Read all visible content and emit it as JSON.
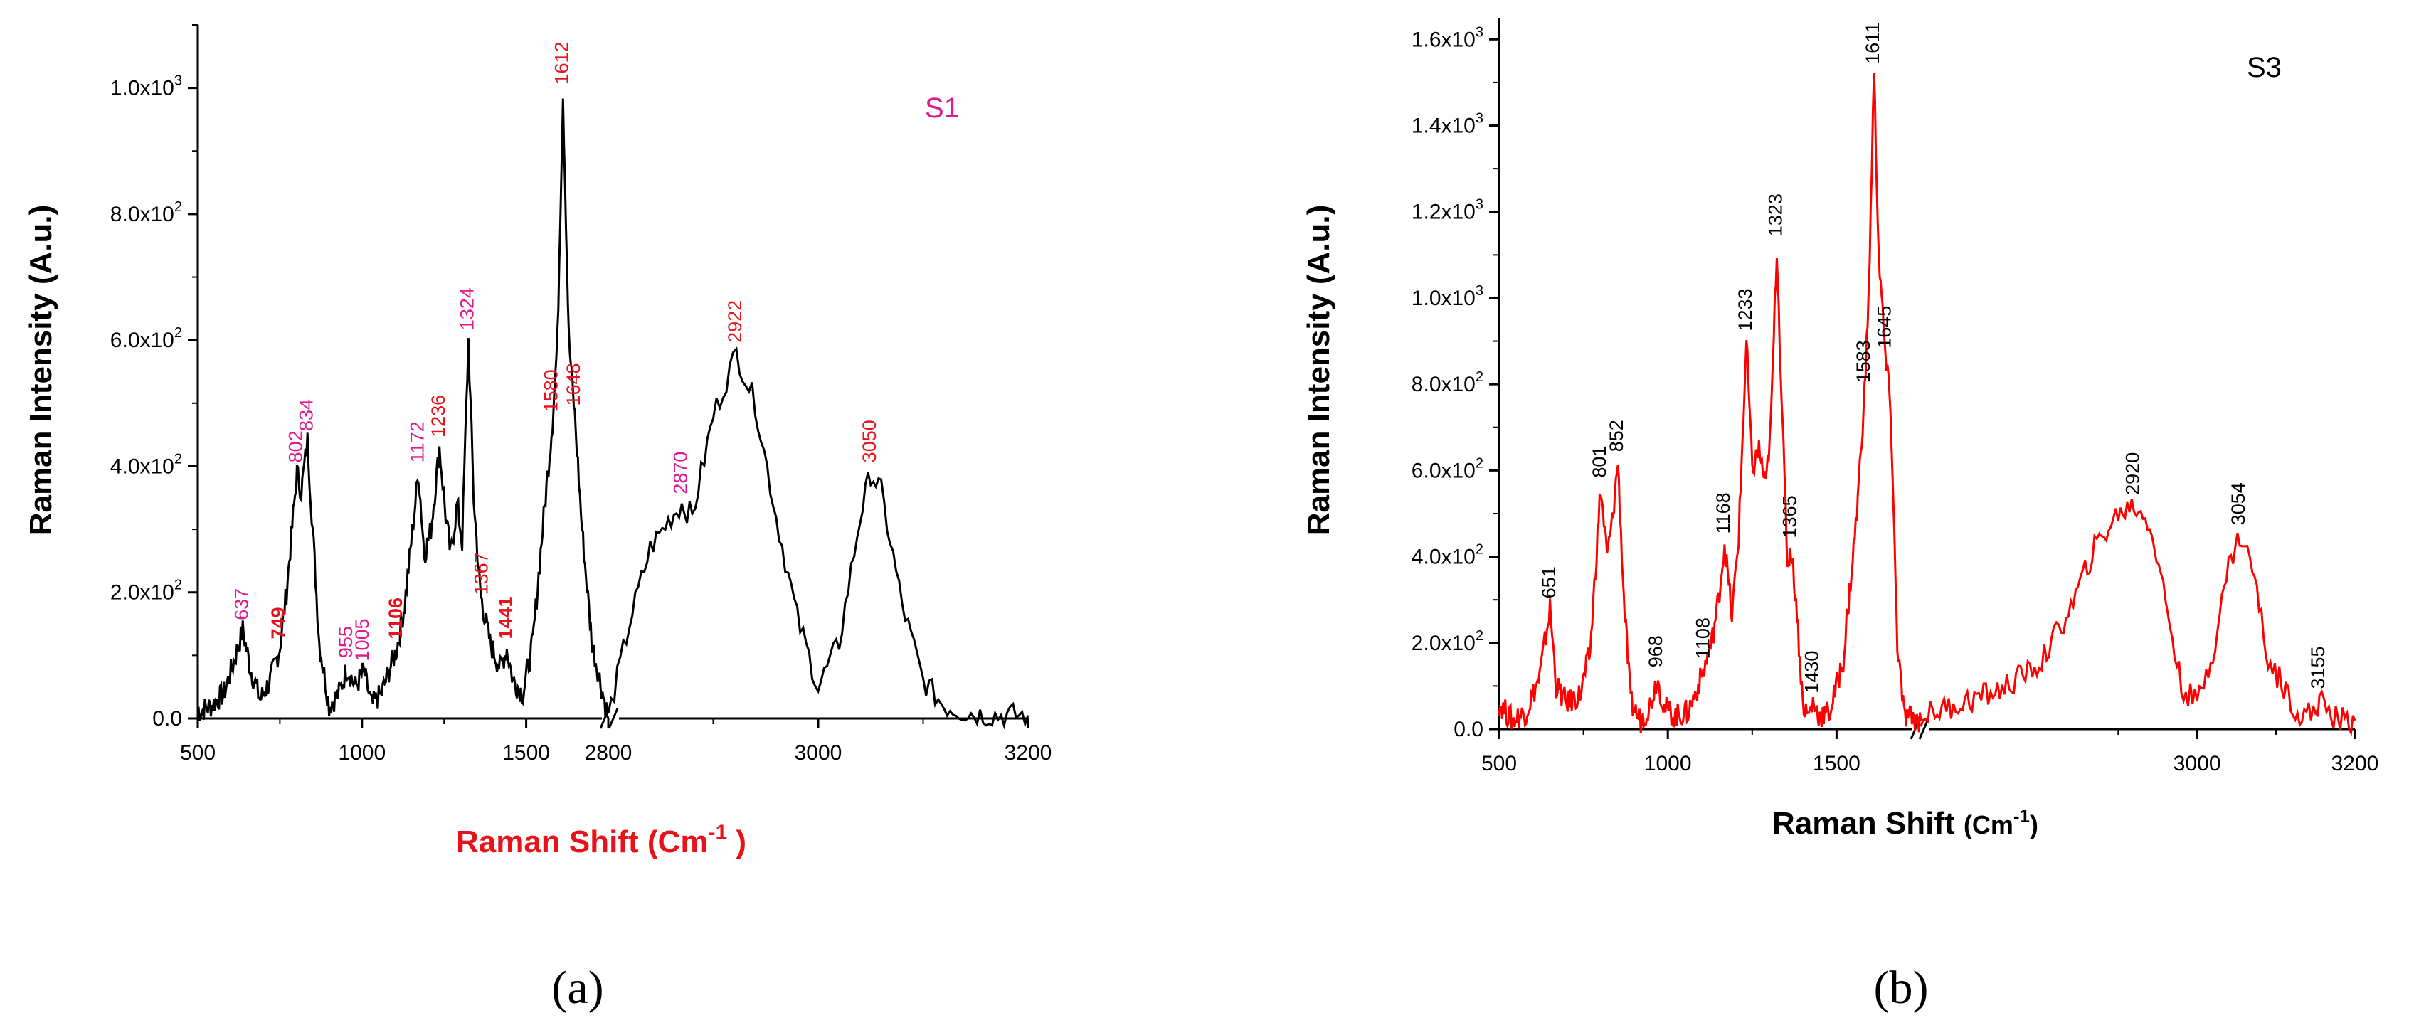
{
  "chart_data": [
    {
      "type": "line",
      "panel_caption": "(a)",
      "sample_label": "S1",
      "ylabel": "Raman Intensity (A.u.)",
      "xlabel": "Raman Shift (Cm",
      "xlabel_sup": "-1",
      "xlabel_tail": " )",
      "x_breaks": [
        [
          500,
          1750
        ],
        [
          2800,
          3200
        ]
      ],
      "ylim": [
        0,
        1100
      ],
      "x_tick_labels": [
        "500",
        "1000",
        "1500",
        "2800",
        "3000",
        "3200"
      ],
      "y_tick_labels": [
        {
          "mant": "0.0",
          "exp": ""
        },
        {
          "mant": "2.0x10",
          "exp": "2"
        },
        {
          "mant": "4.0x10",
          "exp": "2"
        },
        {
          "mant": "6.0x10",
          "exp": "2"
        },
        {
          "mant": "8.0x10",
          "exp": "2"
        },
        {
          "mant": "1.0x10",
          "exp": "3"
        }
      ],
      "y_tick_values": [
        0,
        200,
        400,
        600,
        800,
        1000
      ],
      "line_color": "#000000",
      "label_colors": {
        "magenta": "#e0198c",
        "red": "#e8131a"
      },
      "peaks": [
        {
          "x": 637,
          "y": 140,
          "label": "637",
          "color": "magenta"
        },
        {
          "x": 749,
          "y": 110,
          "label": "749",
          "color": "red",
          "bold": true
        },
        {
          "x": 802,
          "y": 390,
          "label": "802",
          "color": "magenta"
        },
        {
          "x": 834,
          "y": 440,
          "label": "834",
          "color": "magenta"
        },
        {
          "x": 955,
          "y": 80,
          "label": "955",
          "color": "magenta"
        },
        {
          "x": 1005,
          "y": 75,
          "label": "1005",
          "color": "magenta"
        },
        {
          "x": 1106,
          "y": 110,
          "label": "1106",
          "color": "red",
          "bold": true
        },
        {
          "x": 1172,
          "y": 390,
          "label": "1172",
          "color": "magenta"
        },
        {
          "x": 1236,
          "y": 430,
          "label": "1236",
          "color": "red"
        },
        {
          "x": 1324,
          "y": 600,
          "label": "1324",
          "color": "magenta"
        },
        {
          "x": 1367,
          "y": 180,
          "label": "1367",
          "color": "red"
        },
        {
          "x": 1441,
          "y": 110,
          "label": "1441",
          "color": "red",
          "bold": true
        },
        {
          "x": 1580,
          "y": 470,
          "label": "1580",
          "color": "red"
        },
        {
          "x": 1612,
          "y": 990,
          "label": "1612",
          "color": "red"
        },
        {
          "x": 1648,
          "y": 480,
          "label": "1648",
          "color": "red"
        },
        {
          "x": 2870,
          "y": 340,
          "label": "2870",
          "color": "magenta"
        },
        {
          "x": 2922,
          "y": 580,
          "label": "2922",
          "color": "red"
        },
        {
          "x": 3050,
          "y": 390,
          "label": "3050",
          "color": "red"
        }
      ],
      "series": [
        {
          "x": [
            500,
            540,
            580,
            610,
            637,
            660,
            690,
            720,
            749,
            770,
            802,
            815,
            834,
            850,
            870,
            900,
            930,
            955,
            980,
            1005,
            1030,
            1060,
            1085,
            1106,
            1130,
            1150,
            1172,
            1190,
            1210,
            1236,
            1255,
            1270,
            1290,
            1305,
            1324,
            1340,
            1360,
            1367,
            1390,
            1420,
            1441,
            1460,
            1490,
            1520,
            1550,
            1580,
            1595,
            1612,
            1630,
            1648,
            1670,
            1700,
            1750
          ],
          "y": [
            10,
            20,
            40,
            90,
            140,
            80,
            30,
            60,
            110,
            200,
            390,
            360,
            440,
            300,
            120,
            20,
            40,
            80,
            50,
            75,
            20,
            40,
            80,
            110,
            180,
            280,
            390,
            260,
            300,
            430,
            320,
            260,
            340,
            280,
            600,
            350,
            200,
            180,
            120,
            80,
            110,
            60,
            40,
            120,
            300,
            470,
            600,
            990,
            600,
            480,
            300,
            120,
            0
          ]
        },
        {
          "x": [
            2800,
            2820,
            2840,
            2860,
            2870,
            2880,
            2900,
            2922,
            2940,
            2960,
            2980,
            3000,
            3020,
            3040,
            3050,
            3060,
            3080,
            3100,
            3120,
            3140,
            3160,
            3180,
            3200
          ],
          "y": [
            0,
            150,
            270,
            320,
            340,
            320,
            480,
            580,
            500,
            320,
            160,
            50,
            120,
            320,
            390,
            360,
            180,
            60,
            20,
            10,
            5,
            5,
            5
          ]
        }
      ]
    },
    {
      "type": "line",
      "panel_caption": "(b)",
      "sample_label": "S3",
      "ylabel": "Raman Intensity (A.u.)",
      "xlabel": "Raman Shift ",
      "xlabel_unit": "(Cm",
      "xlabel_sup": "-1",
      "xlabel_tail": ")",
      "x_breaks": [
        [
          500,
          1750
        ],
        [
          2650,
          3200
        ]
      ],
      "ylim": [
        0,
        1650
      ],
      "x_tick_labels": [
        "500",
        "1000",
        "1500",
        "3000",
        "3200"
      ],
      "y_tick_labels": [
        {
          "mant": "0.0",
          "exp": ""
        },
        {
          "mant": "2.0x10",
          "exp": "2"
        },
        {
          "mant": "4.0x10",
          "exp": "2"
        },
        {
          "mant": "6.0x10",
          "exp": "2"
        },
        {
          "mant": "8.0x10",
          "exp": "2"
        },
        {
          "mant": "1.0x10",
          "exp": "3"
        },
        {
          "mant": "1.2x10",
          "exp": "3"
        },
        {
          "mant": "1.4x10",
          "exp": "3"
        },
        {
          "mant": "1.6x10",
          "exp": "3"
        }
      ],
      "y_tick_values": [
        0,
        200,
        400,
        600,
        800,
        1000,
        1200,
        1400,
        1600
      ],
      "line_color": "#ff0000",
      "label_colors": {
        "black": "#000000"
      },
      "peaks": [
        {
          "x": 651,
          "y": 280,
          "label": "651",
          "color": "black"
        },
        {
          "x": 801,
          "y": 560,
          "label": "801",
          "color": "black"
        },
        {
          "x": 852,
          "y": 620,
          "label": "852",
          "color": "black"
        },
        {
          "x": 968,
          "y": 120,
          "label": "968",
          "color": "black"
        },
        {
          "x": 1108,
          "y": 140,
          "label": "1108",
          "color": "black"
        },
        {
          "x": 1168,
          "y": 430,
          "label": "1168",
          "color": "black"
        },
        {
          "x": 1233,
          "y": 900,
          "label": "1233",
          "color": "black"
        },
        {
          "x": 1323,
          "y": 1120,
          "label": "1323",
          "color": "black"
        },
        {
          "x": 1365,
          "y": 420,
          "label": "1365",
          "color": "black"
        },
        {
          "x": 1430,
          "y": 60,
          "label": "1430",
          "color": "black"
        },
        {
          "x": 1583,
          "y": 780,
          "label": "1583",
          "color": "black"
        },
        {
          "x": 1611,
          "y": 1520,
          "label": "1611",
          "color": "black"
        },
        {
          "x": 1645,
          "y": 860,
          "label": "1645",
          "color": "black"
        },
        {
          "x": 2920,
          "y": 520,
          "label": "2920",
          "color": "black"
        },
        {
          "x": 3054,
          "y": 450,
          "label": "3054",
          "color": "black"
        },
        {
          "x": 3155,
          "y": 70,
          "label": "3155",
          "color": "black"
        }
      ],
      "series": [
        {
          "x": [
            500,
            540,
            580,
            620,
            651,
            670,
            700,
            740,
            770,
            801,
            820,
            835,
            852,
            870,
            890,
            920,
            950,
            968,
            990,
            1020,
            1060,
            1090,
            1108,
            1130,
            1150,
            1168,
            1190,
            1210,
            1233,
            1250,
            1270,
            1290,
            1305,
            1323,
            1340,
            1355,
            1365,
            1380,
            1400,
            1415,
            1430,
            1450,
            1480,
            1520,
            1560,
            1583,
            1595,
            1611,
            1625,
            1645,
            1660,
            1680,
            1700,
            1750
          ],
          "y": [
            60,
            20,
            40,
            120,
            280,
            100,
            60,
            80,
            180,
            560,
            400,
            480,
            620,
            300,
            60,
            20,
            60,
            120,
            50,
            30,
            40,
            100,
            140,
            200,
            300,
            430,
            260,
            450,
            900,
            600,
            650,
            560,
            700,
            1120,
            700,
            380,
            420,
            300,
            60,
            30,
            60,
            30,
            40,
            160,
            500,
            780,
            1000,
            1520,
            1100,
            860,
            750,
            200,
            30,
            20
          ]
        },
        {
          "x": [
            2650,
            2700,
            2750,
            2800,
            2840,
            2870,
            2900,
            2920,
            2940,
            2960,
            2980,
            3000,
            3020,
            3040,
            3054,
            3070,
            3090,
            3110,
            3130,
            3150,
            3155,
            3170,
            3190,
            3200
          ],
          "y": [
            30,
            60,
            90,
            150,
            280,
            420,
            500,
            520,
            480,
            300,
            100,
            60,
            180,
            380,
            450,
            380,
            160,
            100,
            30,
            40,
            70,
            30,
            20,
            20
          ]
        }
      ]
    }
  ]
}
